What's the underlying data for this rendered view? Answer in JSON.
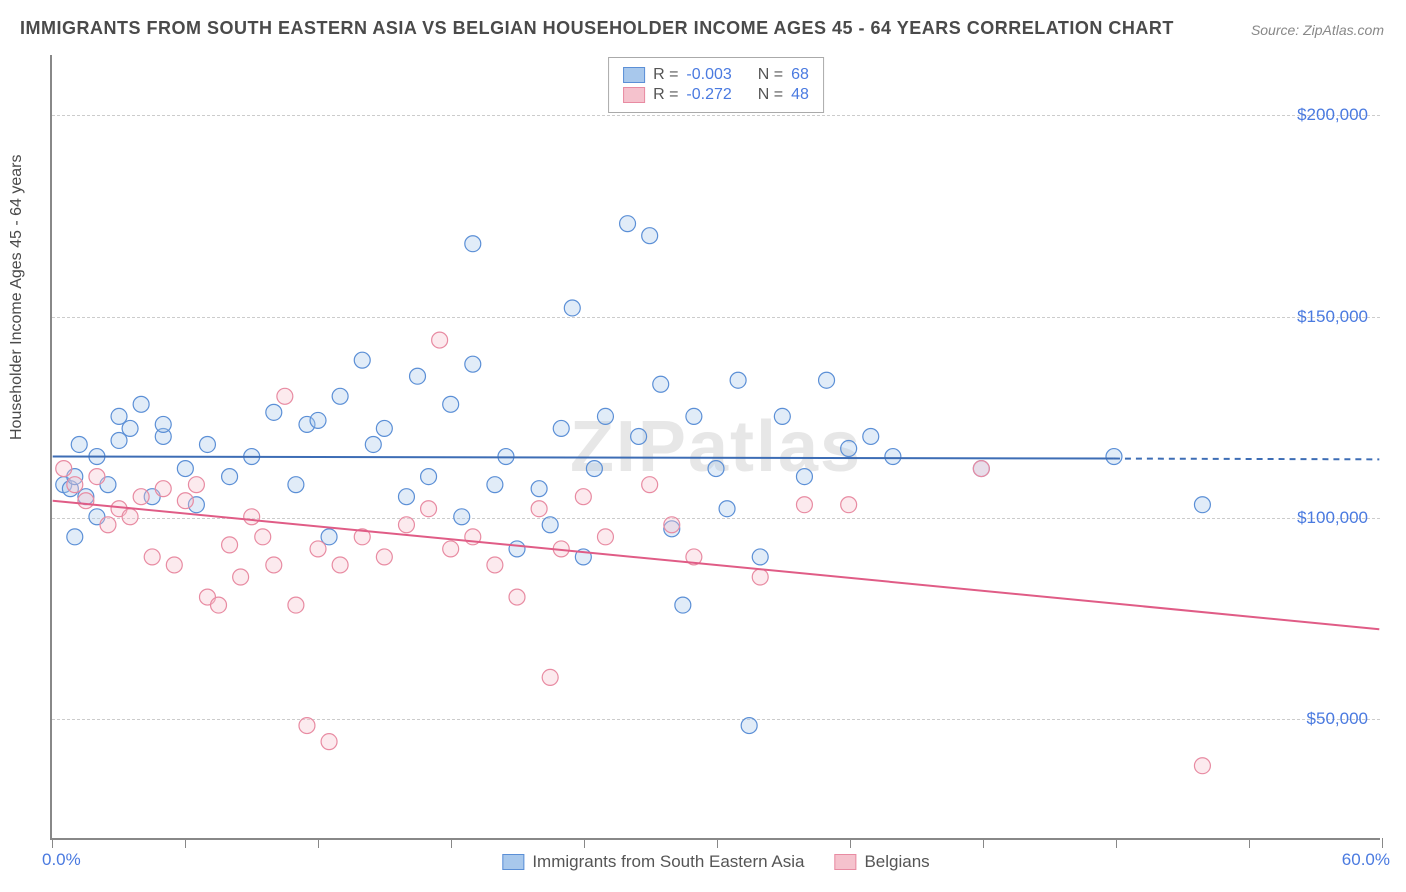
{
  "title": "IMMIGRANTS FROM SOUTH EASTERN ASIA VS BELGIAN HOUSEHOLDER INCOME AGES 45 - 64 YEARS CORRELATION CHART",
  "source": "Source: ZipAtlas.com",
  "watermark": "ZIPatlas",
  "chart": {
    "type": "scatter-with-regression",
    "ylabel": "Householder Income Ages 45 - 64 years",
    "xlim": [
      0,
      60
    ],
    "ylim": [
      20000,
      215000
    ],
    "x_ticks": [
      0,
      6,
      12,
      18,
      24,
      30,
      36,
      42,
      48,
      54,
      60
    ],
    "y_gridlines": [
      50000,
      100000,
      150000,
      200000
    ],
    "y_tick_labels": [
      "$50,000",
      "$100,000",
      "$150,000",
      "$200,000"
    ],
    "x_min_label": "0.0%",
    "x_max_label": "60.0%",
    "background_color": "#ffffff",
    "grid_color": "#cccccc",
    "axis_color": "#888888",
    "tick_label_color": "#4a7ae0",
    "marker_radius": 8,
    "marker_fill_opacity": 0.35,
    "marker_stroke_width": 1.2,
    "line_width": 2,
    "dashed_extension": true,
    "series": [
      {
        "name": "Immigrants from South Eastern Asia",
        "color_fill": "#a8c8ec",
        "color_stroke": "#5b8fd6",
        "line_color": "#3d6db5",
        "R": "-0.003",
        "N": "68",
        "regression": {
          "x1": 0,
          "y1": 115000,
          "x2": 48,
          "y2": 114500,
          "x2_dash": 60,
          "y2_dash": 114300
        },
        "points": [
          [
            0.5,
            108000
          ],
          [
            0.8,
            107000
          ],
          [
            1,
            95000
          ],
          [
            1,
            110000
          ],
          [
            1.2,
            118000
          ],
          [
            1.5,
            105000
          ],
          [
            2,
            100000
          ],
          [
            2,
            115000
          ],
          [
            2.5,
            108000
          ],
          [
            3,
            125000
          ],
          [
            3,
            119000
          ],
          [
            3.5,
            122000
          ],
          [
            4,
            128000
          ],
          [
            4.5,
            105000
          ],
          [
            5,
            120000
          ],
          [
            5,
            123000
          ],
          [
            6,
            112000
          ],
          [
            6.5,
            103000
          ],
          [
            7,
            118000
          ],
          [
            8,
            110000
          ],
          [
            9,
            115000
          ],
          [
            10,
            126000
          ],
          [
            11,
            108000
          ],
          [
            11.5,
            123000
          ],
          [
            12,
            124000
          ],
          [
            12.5,
            95000
          ],
          [
            13,
            130000
          ],
          [
            14,
            139000
          ],
          [
            14.5,
            118000
          ],
          [
            15,
            122000
          ],
          [
            16,
            105000
          ],
          [
            16.5,
            135000
          ],
          [
            17,
            110000
          ],
          [
            18,
            128000
          ],
          [
            18.5,
            100000
          ],
          [
            19,
            138000
          ],
          [
            19,
            168000
          ],
          [
            20,
            108000
          ],
          [
            20.5,
            115000
          ],
          [
            21,
            92000
          ],
          [
            22,
            107000
          ],
          [
            22.5,
            98000
          ],
          [
            23,
            122000
          ],
          [
            23.5,
            152000
          ],
          [
            24,
            90000
          ],
          [
            24.5,
            112000
          ],
          [
            25,
            125000
          ],
          [
            26,
            173000
          ],
          [
            26.5,
            120000
          ],
          [
            27,
            170000
          ],
          [
            27.5,
            133000
          ],
          [
            28,
            97000
          ],
          [
            28.5,
            78000
          ],
          [
            29,
            125000
          ],
          [
            30,
            112000
          ],
          [
            30.5,
            102000
          ],
          [
            31,
            134000
          ],
          [
            31.5,
            48000
          ],
          [
            32,
            90000
          ],
          [
            33,
            125000
          ],
          [
            34,
            110000
          ],
          [
            35,
            134000
          ],
          [
            36,
            117000
          ],
          [
            37,
            120000
          ],
          [
            38,
            115000
          ],
          [
            42,
            112000
          ],
          [
            48,
            115000
          ],
          [
            52,
            103000
          ]
        ]
      },
      {
        "name": "Belgians",
        "color_fill": "#f5c2cd",
        "color_stroke": "#e88ba2",
        "line_color": "#e05c86",
        "R": "-0.272",
        "N": "48",
        "regression": {
          "x1": 0,
          "y1": 104000,
          "x2": 60,
          "y2": 72000
        },
        "points": [
          [
            0.5,
            112000
          ],
          [
            1,
            108000
          ],
          [
            1.5,
            104000
          ],
          [
            2,
            110000
          ],
          [
            2.5,
            98000
          ],
          [
            3,
            102000
          ],
          [
            3.5,
            100000
          ],
          [
            4,
            105000
          ],
          [
            4.5,
            90000
          ],
          [
            5,
            107000
          ],
          [
            5.5,
            88000
          ],
          [
            6,
            104000
          ],
          [
            6.5,
            108000
          ],
          [
            7,
            80000
          ],
          [
            7.5,
            78000
          ],
          [
            8,
            93000
          ],
          [
            8.5,
            85000
          ],
          [
            9,
            100000
          ],
          [
            9.5,
            95000
          ],
          [
            10,
            88000
          ],
          [
            10.5,
            130000
          ],
          [
            11,
            78000
          ],
          [
            11.5,
            48000
          ],
          [
            12,
            92000
          ],
          [
            12.5,
            44000
          ],
          [
            13,
            88000
          ],
          [
            14,
            95000
          ],
          [
            15,
            90000
          ],
          [
            16,
            98000
          ],
          [
            17,
            102000
          ],
          [
            17.5,
            144000
          ],
          [
            18,
            92000
          ],
          [
            19,
            95000
          ],
          [
            20,
            88000
          ],
          [
            21,
            80000
          ],
          [
            22,
            102000
          ],
          [
            22.5,
            60000
          ],
          [
            23,
            92000
          ],
          [
            24,
            105000
          ],
          [
            25,
            95000
          ],
          [
            27,
            108000
          ],
          [
            28,
            98000
          ],
          [
            29,
            90000
          ],
          [
            32,
            85000
          ],
          [
            34,
            103000
          ],
          [
            36,
            103000
          ],
          [
            42,
            112000
          ],
          [
            52,
            38000
          ]
        ]
      }
    ]
  },
  "legend_top": {
    "r_label": "R =",
    "n_label": "N ="
  },
  "legend_bottom_labels": [
    "Immigrants from South Eastern Asia",
    "Belgians"
  ]
}
